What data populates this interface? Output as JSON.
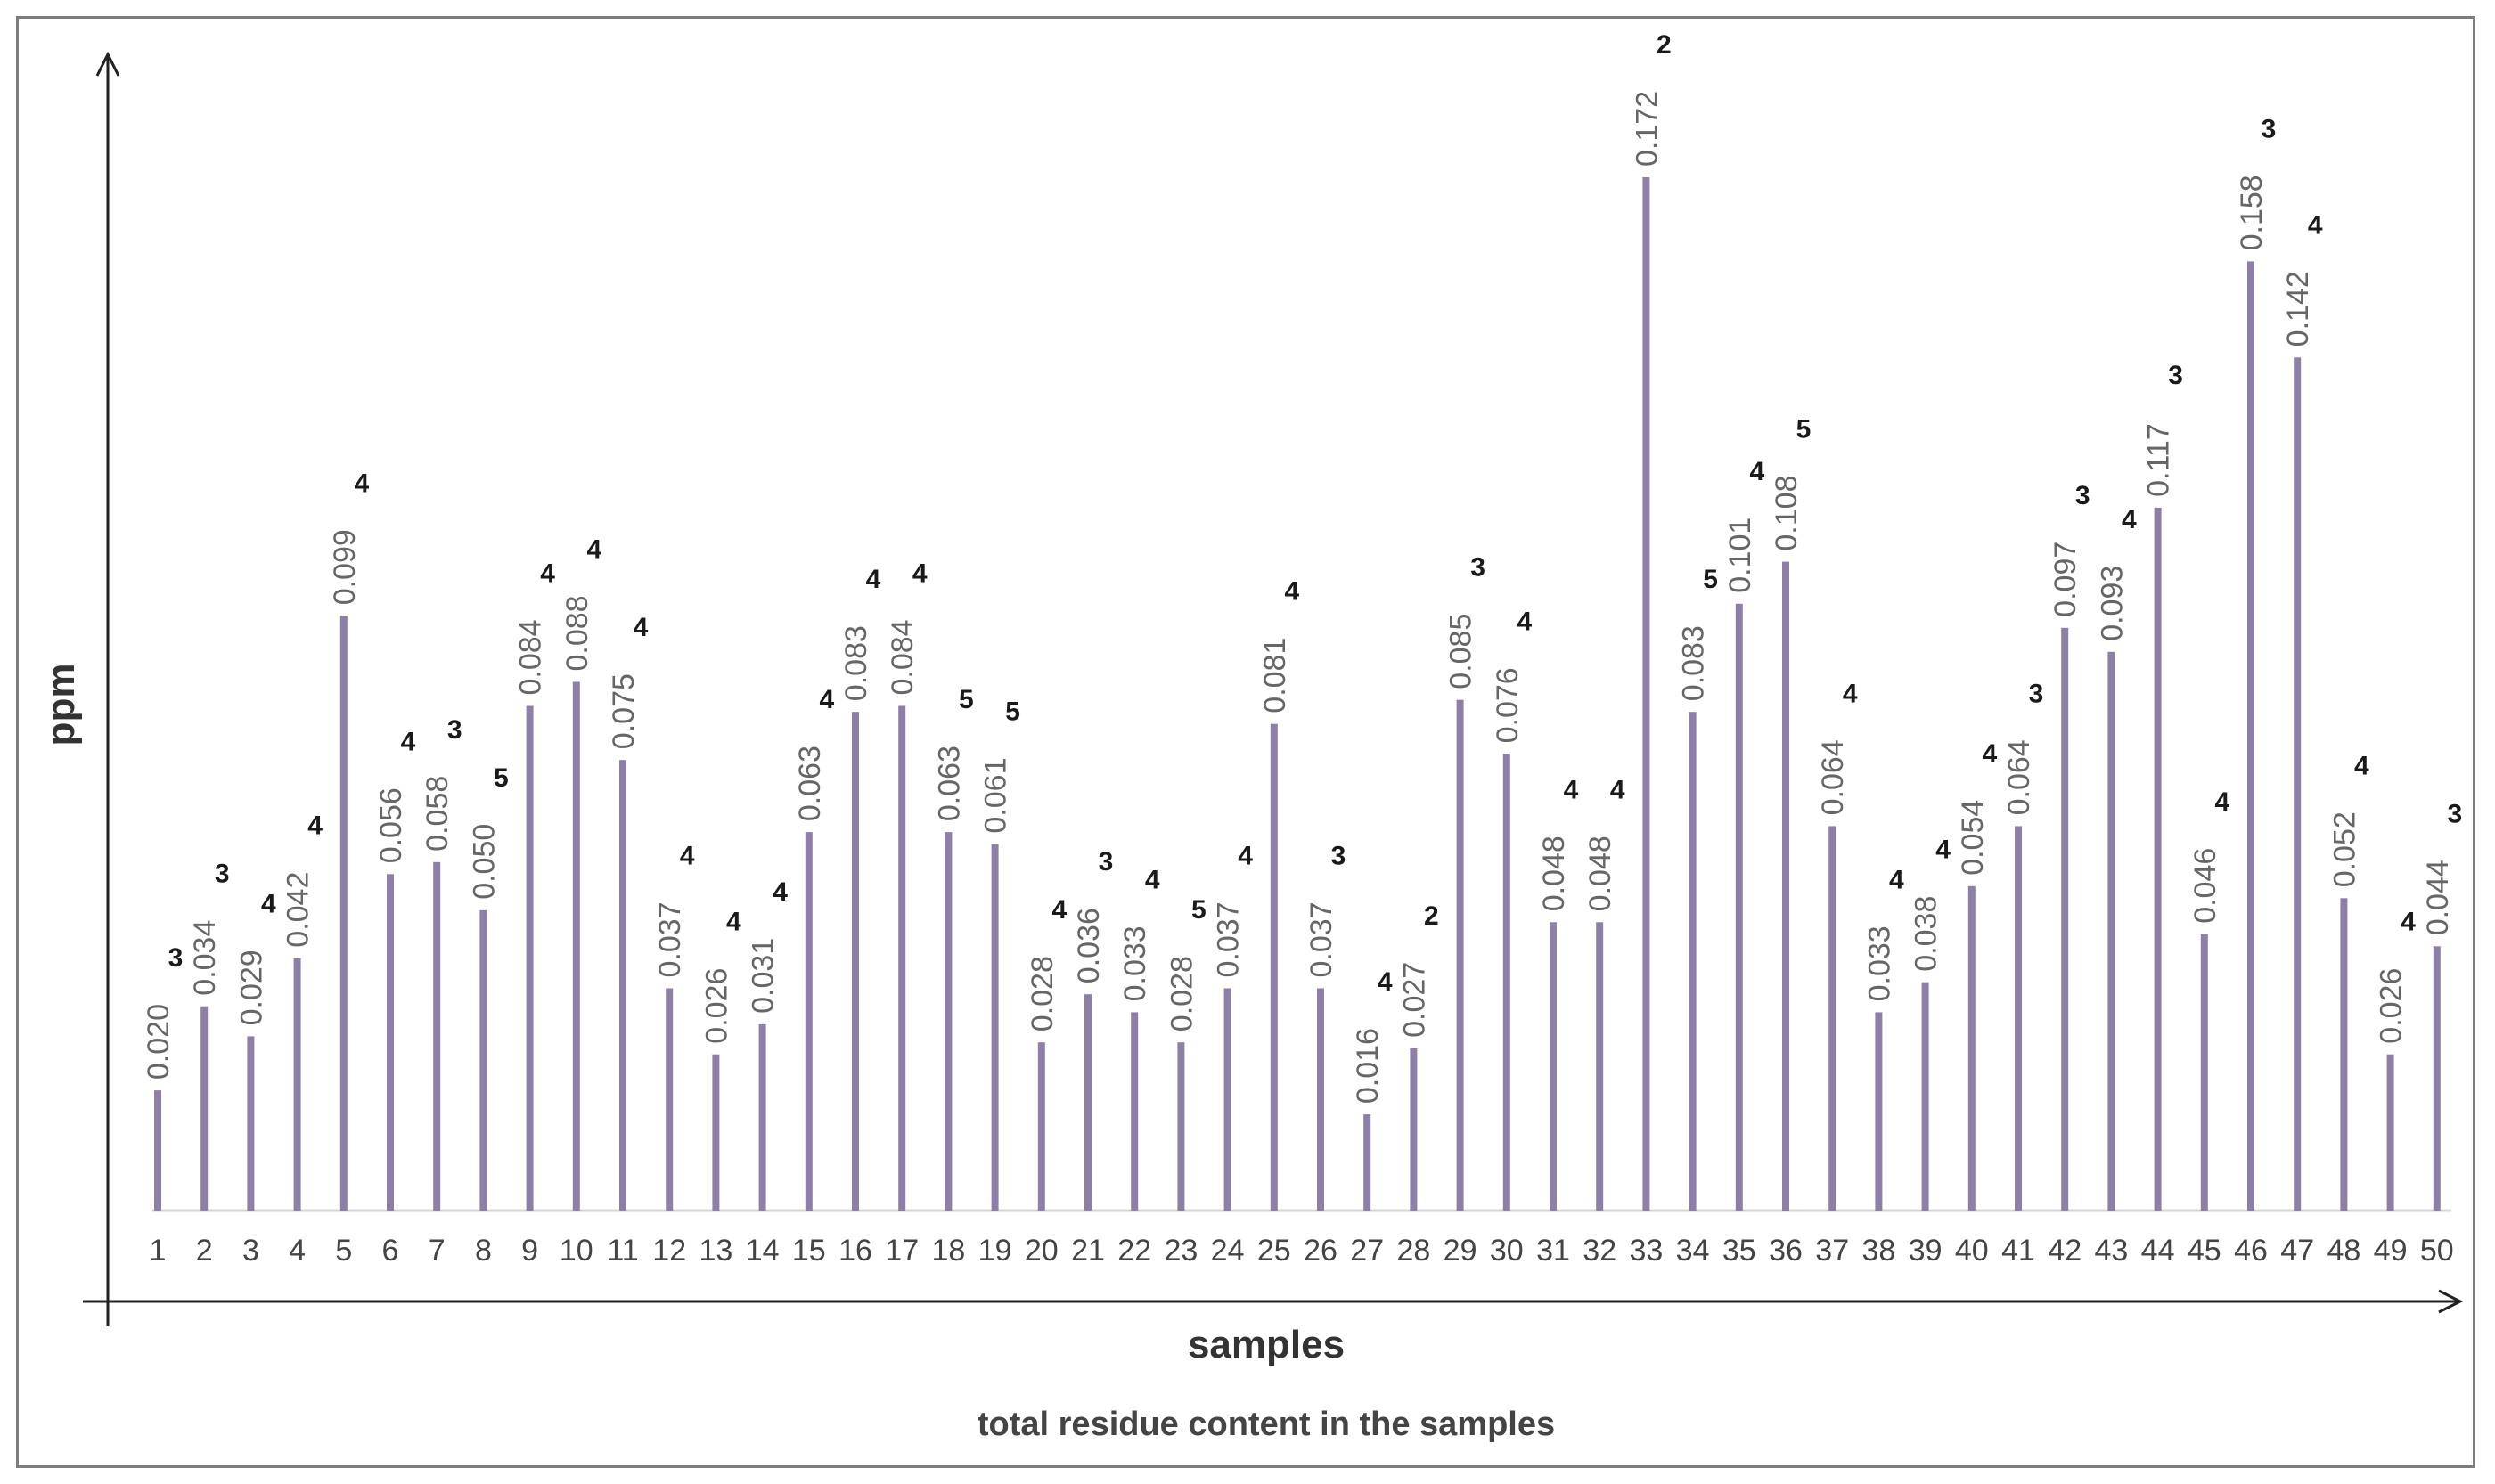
{
  "chart_data": {
    "type": "bar",
    "title": "total residue content in the samples",
    "xlabel": "samples",
    "ylabel": "ppm",
    "ylim": [
      0,
      0.18
    ],
    "grid": false,
    "categories": [
      "1",
      "2",
      "3",
      "4",
      "5",
      "6",
      "7",
      "8",
      "9",
      "10",
      "11",
      "12",
      "13",
      "14",
      "15",
      "16",
      "17",
      "18",
      "19",
      "20",
      "21",
      "22",
      "23",
      "24",
      "25",
      "26",
      "27",
      "28",
      "29",
      "30",
      "31",
      "32",
      "33",
      "34",
      "35",
      "36",
      "37",
      "38",
      "39",
      "40",
      "41",
      "42",
      "43",
      "44",
      "45",
      "46",
      "47",
      "48",
      "49",
      "50"
    ],
    "values": [
      0.02,
      0.034,
      0.029,
      0.042,
      0.099,
      0.056,
      0.058,
      0.05,
      0.084,
      0.088,
      0.075,
      0.037,
      0.026,
      0.031,
      0.063,
      0.083,
      0.084,
      0.063,
      0.061,
      0.028,
      0.036,
      0.033,
      0.028,
      0.037,
      0.081,
      0.037,
      0.016,
      0.027,
      0.085,
      0.076,
      0.048,
      0.048,
      0.172,
      0.083,
      0.101,
      0.108,
      0.064,
      0.033,
      0.038,
      0.054,
      0.064,
      0.097,
      0.093,
      0.117,
      0.046,
      0.158,
      0.142,
      0.052,
      0.026,
      0.044
    ],
    "value_labels": [
      "0.020",
      "0.034",
      "0.029",
      "0.042",
      "0.099",
      "0.056",
      "0.058",
      "0.050",
      "0.084",
      "0.088",
      "0.075",
      "0.037",
      "0.026",
      "0.031",
      "0.063",
      "0.083",
      "0.084",
      "0.063",
      "0.061",
      "0.028",
      "0.036",
      "0.033",
      "0.028",
      "0.037",
      "0.081",
      "0.037",
      "0.016",
      "0.027",
      "0.085",
      "0.076",
      "0.048",
      "0.048",
      "0.172",
      "0.083",
      "0.101",
      "0.108",
      "0.064",
      "0.033",
      "0.038",
      "0.054",
      "0.064",
      "0.097",
      "0.093",
      "0.117",
      "0.046",
      "0.158",
      "0.142",
      "0.052",
      "0.026",
      "0.044"
    ],
    "annotations": [
      "3",
      "3",
      "4",
      "4",
      "4",
      "4",
      "3",
      "5",
      "4",
      "4",
      "4",
      "4",
      "4",
      "4",
      "4",
      "4",
      "4",
      "5",
      "5",
      "4",
      "3",
      "4",
      "5",
      "4",
      "4",
      "3",
      "4",
      "2",
      "3",
      "4",
      "4",
      "4",
      "2",
      "5",
      "4",
      "5",
      "4",
      "4",
      "4",
      "4",
      "3",
      "3",
      "4",
      "3",
      "4",
      "3",
      "4",
      "4",
      "4",
      "3"
    ]
  }
}
